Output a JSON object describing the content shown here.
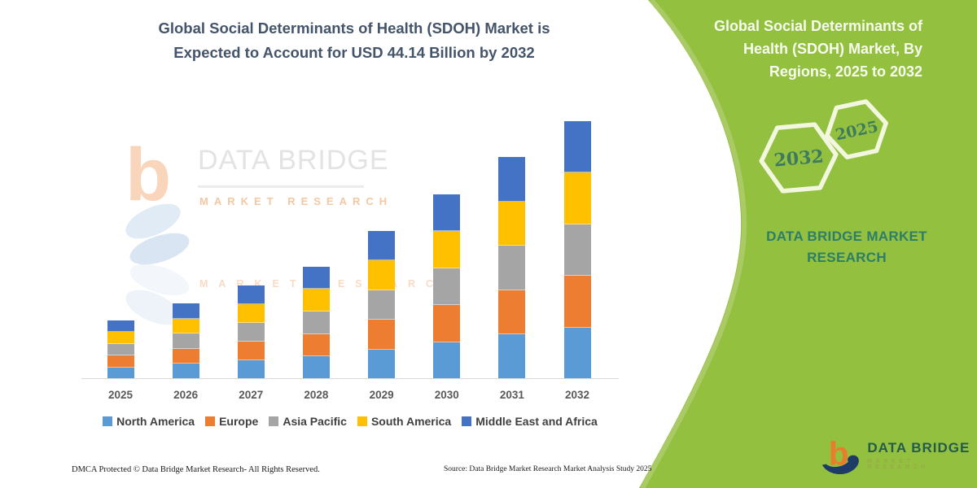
{
  "left": {
    "title_lines": [
      "Global Social Determinants of Health (SDOH) Market is",
      "Expected to Account for USD 44.14 Billion by 2032"
    ],
    "title_color": "#44546A"
  },
  "watermark": {
    "brand": "DATA BRIDGE",
    "sub": "MARKET RESEARCH",
    "reflection": "MARKET RESEARCH"
  },
  "chart_data": {
    "type": "bar",
    "stacked": true,
    "title": "Global Social Determinants of Health (SDOH) Market, By Regions, 2025 to 2032",
    "unit": "USD Billion",
    "categories": [
      "2025",
      "2026",
      "2027",
      "2028",
      "2029",
      "2030",
      "2031",
      "2032"
    ],
    "totals": [
      9.5,
      12.45,
      15.6,
      18.85,
      25.1,
      31.45,
      37.9,
      44.14
    ],
    "series": [
      {
        "name": "North America",
        "color": "#5B9BD5",
        "values": [
          1.9,
          2.49,
          3.12,
          3.77,
          5.02,
          6.29,
          7.58,
          8.83
        ]
      },
      {
        "name": "Europe",
        "color": "#ED7D31",
        "values": [
          1.9,
          2.49,
          3.12,
          3.77,
          5.02,
          6.29,
          7.58,
          8.83
        ]
      },
      {
        "name": "Asia Pacific",
        "color": "#A5A5A5",
        "values": [
          1.9,
          2.49,
          3.12,
          3.77,
          5.02,
          6.29,
          7.58,
          8.83
        ]
      },
      {
        "name": "South America",
        "color": "#FFC000",
        "values": [
          1.9,
          2.49,
          3.12,
          3.77,
          5.02,
          6.29,
          7.58,
          8.83
        ]
      },
      {
        "name": "Middle East and Africa",
        "color": "#4472C4",
        "values": [
          1.9,
          2.49,
          3.12,
          3.77,
          5.02,
          6.29,
          7.58,
          8.82
        ]
      }
    ],
    "ylim": [
      0,
      46
    ],
    "gridlines": false,
    "y_axis_visible": false,
    "legend_position": "bottom"
  },
  "footer": {
    "left": "DMCA Protected © Data Bridge Market Research-  All Rights Reserved.",
    "right": "Source: Data Bridge Market Research  Market Analysis Study 2025"
  },
  "panel": {
    "bg_color": "#93C13F",
    "title_lines": [
      "Global Social Determinants of",
      "Health (SDOH) Market, By",
      "Regions, 2025 to 2032"
    ],
    "hex_large_label": "2032",
    "hex_small_label": "2025",
    "brand_lines": [
      "DATA BRIDGE MARKET",
      "RESEARCH"
    ],
    "logo_title": "DATA BRIDGE",
    "logo_sub": "MARKET RESEARCH"
  }
}
